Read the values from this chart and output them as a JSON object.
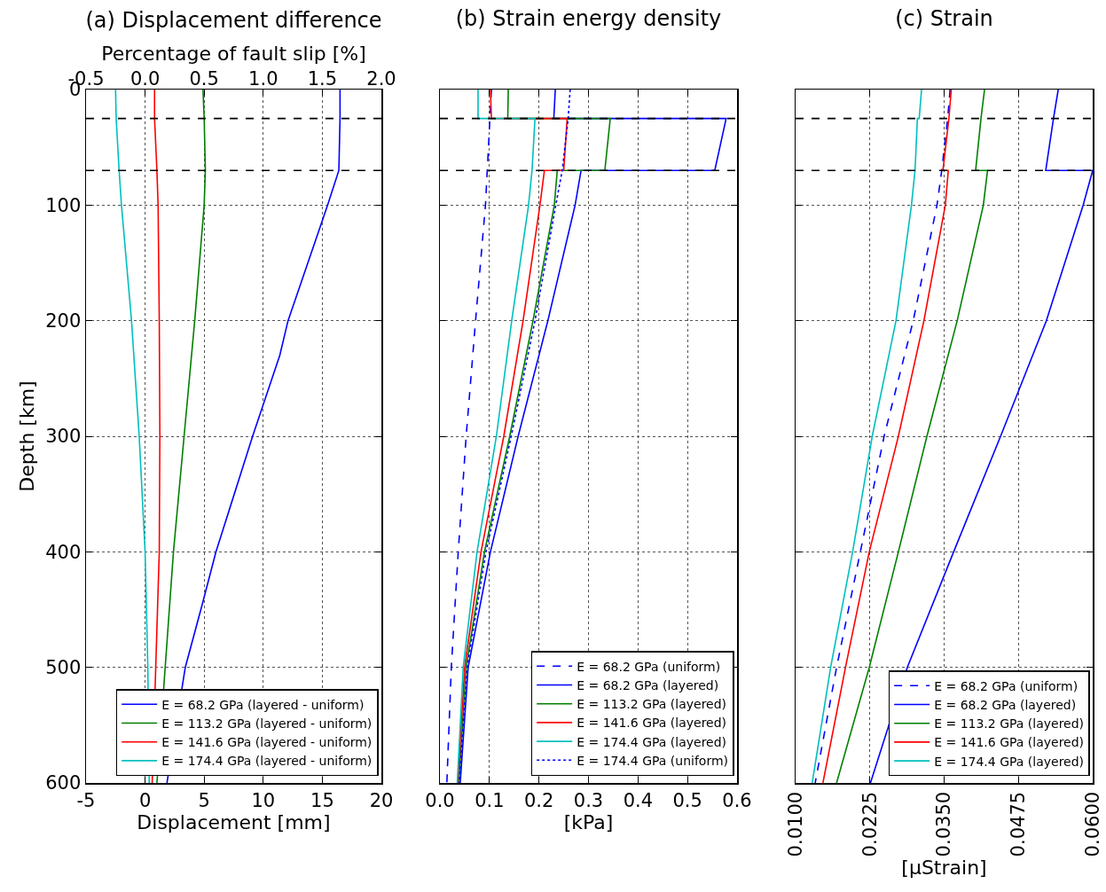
{
  "chart_data": [
    {
      "type": "line",
      "title": "(a) Displacement difference",
      "xlabel": "Displacement [mm]",
      "ylabel": "Depth [km]",
      "x2label": "Percentage of fault slip [%]",
      "xlim": [
        -5,
        20
      ],
      "xticks": [
        -5,
        0,
        5,
        10,
        15,
        20
      ],
      "x2lim": [
        -0.5,
        2.0
      ],
      "x2ticks": [
        -0.5,
        {
          "value": 0,
          "label": "0.0"
        },
        0.5,
        {
          "value": 1,
          "label": "1.0"
        },
        1.5,
        {
          "value": 2,
          "label": "2.0"
        }
      ],
      "ylim": [
        600,
        0
      ],
      "yticks": [
        0,
        100,
        200,
        300,
        400,
        500,
        600
      ],
      "grid": true,
      "legend": "bottom right",
      "marker": "none",
      "line_style": "solid",
      "ref_lines": [
        {
          "axis": "y",
          "value": 25,
          "color": "#000000",
          "line_style": "dashed"
        },
        {
          "axis": "y",
          "value": 70,
          "color": "#000000",
          "line_style": "dashed"
        }
      ],
      "series": [
        {
          "name": "E = 68.2 GPa (layered - uniform)",
          "color": "#0000ff",
          "x": [
            16.5,
            16.5,
            16.4,
            15.45,
            12.1,
            11.4,
            9.1,
            6.0,
            4.85,
            3.4,
            1.85
          ],
          "values": [
            0,
            25,
            70,
            100,
            200,
            230,
            300,
            400,
            445,
            500,
            600
          ]
        },
        {
          "name": "E = 113.2 GPa (layered - uniform)",
          "color": "#008000",
          "x": [
            4.9,
            5.0,
            5.1,
            5.0,
            4.2,
            3.3,
            2.4,
            1.7,
            1.0
          ],
          "values": [
            0,
            25,
            70,
            100,
            200,
            300,
            400,
            500,
            600
          ]
        },
        {
          "name": "E = 141.6 GPa (layered - uniform)",
          "color": "#ff0000",
          "x": [
            0.8,
            0.8,
            1.0,
            1.1,
            1.2,
            1.25,
            1.2,
            0.9,
            0.6
          ],
          "values": [
            0,
            25,
            70,
            100,
            200,
            300,
            400,
            500,
            600
          ]
        },
        {
          "name": "E = 174.4 GPa (layered - uniform)",
          "color": "#00bfbf",
          "x": [
            -2.5,
            -2.45,
            -2.2,
            -2.0,
            -1.15,
            -0.5,
            0.0,
            0.23,
            0.35
          ],
          "values": [
            0,
            25,
            70,
            100,
            200,
            300,
            400,
            500,
            600
          ]
        }
      ]
    },
    {
      "type": "line",
      "title": "(b) Strain energy density",
      "xlabel": "[kPa]",
      "xlim": [
        0,
        0.6
      ],
      "xticks": [
        {
          "value": 0,
          "label": "0.0"
        },
        0.1,
        0.2,
        0.3,
        0.4,
        0.5,
        0.6
      ],
      "ylim": [
        600,
        0
      ],
      "yticks": [
        0,
        100,
        200,
        300,
        400,
        500,
        600
      ],
      "tick_labels": "x",
      "grid": true,
      "legend": "bottom right",
      "marker": "none",
      "line_style": "solid",
      "ref_lines": [
        {
          "axis": "y",
          "value": 25,
          "color": "#000000",
          "line_style": "dashed"
        },
        {
          "axis": "y",
          "value": 70,
          "color": "#000000",
          "line_style": "dashed"
        }
      ],
      "series": [
        {
          "name": "E = 68.2 GPa (uniform)",
          "color": "#0000ff",
          "line_style": "dashed",
          "x": [
            0.104,
            0.092,
            0.072,
            0.053,
            0.037,
            0.023,
            0.014
          ],
          "values": [
            0,
            100,
            200,
            300,
            400,
            500,
            600
          ]
        },
        {
          "name": "E = 68.2 GPa (layered)",
          "color": "#0000ff",
          "x": [
            0.233,
            0.23,
            0.578,
            0.555,
            0.285,
            0.273,
            0.218,
            0.158,
            0.102,
            0.057,
            0.041
          ],
          "values": [
            0,
            25,
            25,
            70,
            70,
            100,
            200,
            300,
            400,
            500,
            600
          ]
        },
        {
          "name": "E = 113.2 GPa (layered)",
          "color": "#008000",
          "x": [
            0.138,
            0.137,
            0.344,
            0.333,
            0.237,
            0.231,
            0.188,
            0.141,
            0.09,
            0.053,
            0.038
          ],
          "values": [
            0,
            25,
            25,
            70,
            70,
            100,
            200,
            300,
            400,
            500,
            600
          ]
        },
        {
          "name": "E = 141.6 GPa (layered)",
          "color": "#ff0000",
          "x": [
            0.102,
            0.104,
            0.257,
            0.25,
            0.211,
            0.202,
            0.168,
            0.129,
            0.083,
            0.05,
            0.036
          ],
          "values": [
            0,
            25,
            25,
            70,
            70,
            100,
            200,
            300,
            400,
            500,
            600
          ]
        },
        {
          "name": "E = 174.4 GPa (layered)",
          "color": "#00bfbf",
          "x": [
            0.077,
            0.077,
            0.192,
            0.186,
            0.179,
            0.145,
            0.114,
            0.075,
            0.047,
            0.035
          ],
          "values": [
            0,
            25,
            25,
            70,
            100,
            200,
            300,
            400,
            500,
            600
          ]
        },
        {
          "name": "E = 174.4 GPa (uniform)",
          "color": "#0000ff",
          "line_style": "dotted",
          "x": [
            0.263,
            0.259,
            0.247,
            0.234,
            0.192,
            0.144,
            0.093,
            0.055,
            0.039
          ],
          "values": [
            0,
            25,
            70,
            100,
            200,
            300,
            400,
            500,
            600
          ]
        }
      ]
    },
    {
      "type": "line",
      "title": "(c) Strain",
      "xlabel": "[μStrain]",
      "xlim": [
        0.01,
        0.06
      ],
      "xticks": [
        {
          "value": 0.01,
          "label": "0.0100"
        },
        {
          "value": 0.0225,
          "label": "0.0225"
        },
        {
          "value": 0.035,
          "label": "0.0350"
        },
        {
          "value": 0.0475,
          "label": "0.0475"
        },
        {
          "value": 0.06,
          "label": "0.0600"
        }
      ],
      "ylim": [
        600,
        0
      ],
      "yticks": [
        0,
        100,
        200,
        300,
        400,
        500,
        600
      ],
      "tick_labels": "x",
      "grid": true,
      "legend": "bottom right",
      "marker": "none",
      "line_style": "solid",
      "ref_lines": [
        {
          "axis": "y",
          "value": 25,
          "color": "#000000",
          "line_style": "dashed"
        },
        {
          "axis": "y",
          "value": 70,
          "color": "#000000",
          "line_style": "dashed"
        }
      ],
      "series": [
        {
          "name": "E = 68.2 GPa (uniform)",
          "color": "#0000ff",
          "line_style": "dashed",
          "x": [
            0.036,
            0.0356,
            0.0346,
            0.0338,
            0.0298,
            0.0249,
            0.0209,
            0.0169,
            0.0133
          ],
          "values": [
            0,
            25,
            70,
            100,
            200,
            300,
            400,
            500,
            600
          ]
        },
        {
          "name": "E = 68.2 GPa (layered)",
          "color": "#0000ff",
          "x": [
            0.0542,
            0.0534,
            0.0521,
            0.06,
            0.0584,
            0.0522,
            0.0445,
            0.0366,
            0.0288,
            0.0226
          ],
          "values": [
            0,
            25,
            70,
            70,
            100,
            200,
            300,
            400,
            500,
            600
          ]
        },
        {
          "name": "E = 113.2 GPa (layered)",
          "color": "#008000",
          "x": [
            0.0418,
            0.0412,
            0.0403,
            0.0423,
            0.0416,
            0.0372,
            0.0321,
            0.0273,
            0.0224,
            0.0169
          ],
          "values": [
            0,
            25,
            70,
            70,
            100,
            200,
            300,
            400,
            500,
            600
          ]
        },
        {
          "name": "E = 141.6 GPa (layered)",
          "color": "#ff0000",
          "x": [
            0.0362,
            0.0358,
            0.0348,
            0.0357,
            0.0352,
            0.0316,
            0.0273,
            0.0224,
            0.0184,
            0.0146
          ],
          "values": [
            0,
            25,
            70,
            70,
            100,
            200,
            300,
            400,
            500,
            600
          ]
        },
        {
          "name": "E = 174.4 GPa (layered)",
          "color": "#00bfbf",
          "x": [
            0.0312,
            0.0308,
            0.0305,
            0.0301,
            0.0295,
            0.0269,
            0.0229,
            0.0196,
            0.0159,
            0.0128
          ],
          "values": [
            0,
            25,
            25,
            70,
            100,
            200,
            300,
            400,
            500,
            600
          ]
        }
      ]
    }
  ]
}
